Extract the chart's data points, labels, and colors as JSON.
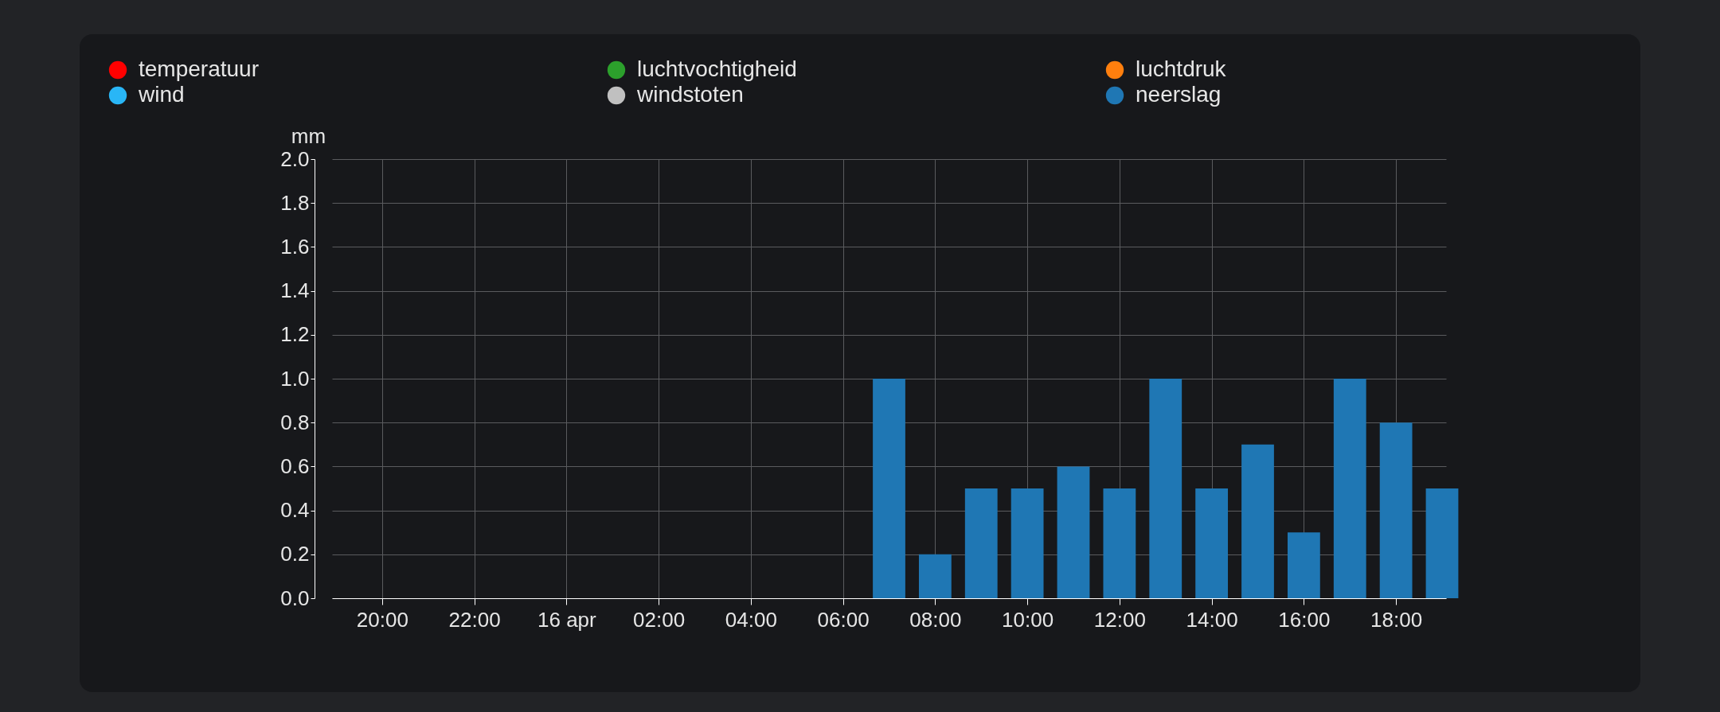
{
  "chart_data": {
    "type": "bar",
    "ylabel": "mm",
    "x": [
      "--04-16T07:00",
      "--04-16T08:00",
      "--04-16T09:00",
      "--04-16T10:00",
      "--04-16T11:00",
      "--04-16T12:00",
      "--04-16T13:00",
      "--04-16T14:00",
      "--04-16T15:00",
      "--04-16T16:00",
      "--04-16T17:00",
      "--04-16T18:00",
      "--04-16T19:00"
    ],
    "series": [
      {
        "name": "temperatuur",
        "color": "#ff0000",
        "values": [
          null,
          null,
          null,
          null,
          null,
          null,
          null,
          null,
          null,
          null,
          null,
          null,
          null
        ]
      },
      {
        "name": "luchtvochtigheid",
        "color": "#2ca02c",
        "values": [
          null,
          null,
          null,
          null,
          null,
          null,
          null,
          null,
          null,
          null,
          null,
          null,
          null
        ]
      },
      {
        "name": "luchtdruk",
        "color": "#ff7f0e",
        "values": [
          null,
          null,
          null,
          null,
          null,
          null,
          null,
          null,
          null,
          null,
          null,
          null,
          null
        ]
      },
      {
        "name": "wind",
        "color": "#29b6f6",
        "values": [
          null,
          null,
          null,
          null,
          null,
          null,
          null,
          null,
          null,
          null,
          null,
          null,
          null
        ]
      },
      {
        "name": "windstoten",
        "color": "#c0c0c0",
        "values": [
          null,
          null,
          null,
          null,
          null,
          null,
          null,
          null,
          null,
          null,
          null,
          null,
          null
        ]
      },
      {
        "name": "neerslag",
        "color": "#1f77b4",
        "values": [
          1.0,
          0.2,
          0.5,
          0.5,
          0.6,
          0.5,
          1.0,
          0.5,
          0.7,
          0.3,
          1.0,
          0.8,
          0.5
        ]
      }
    ],
    "xlim": [
      "--04-15T19:00",
      "--04-16T19:00"
    ],
    "xticks": [
      {
        "value": "--04-15T20:00",
        "label": "20:00"
      },
      {
        "value": "--04-15T22:00",
        "label": "22:00"
      },
      {
        "value": "--04-16T00:00",
        "label": "16 apr"
      },
      {
        "value": "--04-16T02:00",
        "label": "02:00"
      },
      {
        "value": "--04-16T04:00",
        "label": "04:00"
      },
      {
        "value": "--04-16T06:00",
        "label": "06:00"
      },
      {
        "value": "--04-16T08:00",
        "label": "08:00"
      },
      {
        "value": "--04-16T10:00",
        "label": "10:00"
      },
      {
        "value": "--04-16T12:00",
        "label": "12:00"
      },
      {
        "value": "--04-16T14:00",
        "label": "14:00"
      },
      {
        "value": "--04-16T16:00",
        "label": "16:00"
      },
      {
        "value": "--04-16T18:00",
        "label": "18:00"
      }
    ],
    "ylim": [
      0,
      2.0
    ],
    "yticks": [
      {
        "value": 0,
        "label": "0.0"
      },
      {
        "value": 0.2,
        "label": "0.2"
      },
      {
        "value": 0.4,
        "label": "0.4"
      },
      {
        "value": 0.6,
        "label": "0.6"
      },
      {
        "value": 0.8,
        "label": "0.8"
      },
      {
        "value": 1.0,
        "label": "1.0"
      },
      {
        "value": 1.2,
        "label": "1.2"
      },
      {
        "value": 1.4,
        "label": "1.4"
      },
      {
        "value": 1.6,
        "label": "1.6"
      },
      {
        "value": 1.8,
        "label": "1.8"
      },
      {
        "value": 2.0,
        "label": "2.0"
      }
    ],
    "grid": true,
    "legend": "top left"
  }
}
